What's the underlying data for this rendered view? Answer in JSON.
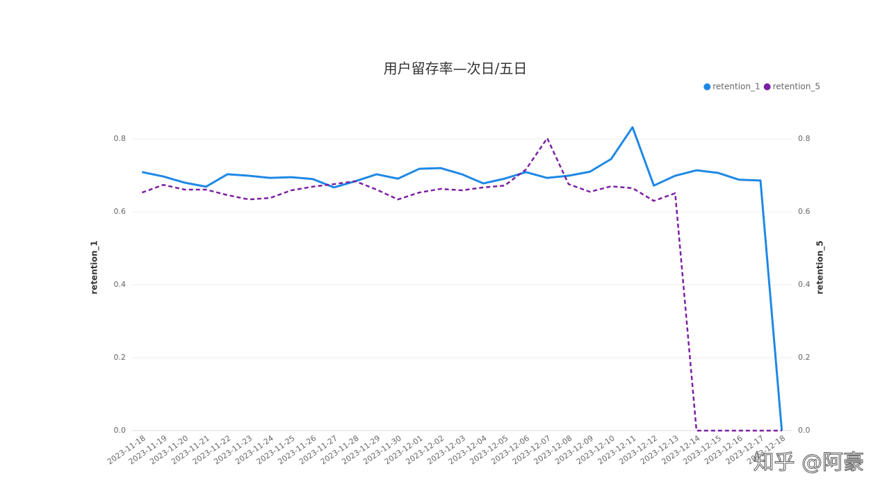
{
  "chart_data": {
    "type": "line",
    "title": "用户留存率—次日/五日",
    "categories": [
      "2023-11-18",
      "2023-11-19",
      "2023-11-20",
      "2023-11-21",
      "2023-11-22",
      "2023-11-23",
      "2023-11-24",
      "2023-11-25",
      "2023-11-26",
      "2023-11-27",
      "2023-11-28",
      "2023-11-29",
      "2023-11-30",
      "2023-12-01",
      "2023-12-02",
      "2023-12-03",
      "2023-12-04",
      "2023-12-05",
      "2023-12-06",
      "2023-12-07",
      "2023-12-08",
      "2023-12-09",
      "2023-12-10",
      "2023-12-11",
      "2023-12-12",
      "2023-12-13",
      "2023-12-14",
      "2023-12-15",
      "2023-12-16",
      "2023-12-17",
      "2023-12-18"
    ],
    "series": [
      {
        "name": "retention_1",
        "color": "#1e88e5",
        "dashed": false,
        "axis": "y",
        "values": [
          0.709,
          0.697,
          0.68,
          0.669,
          0.703,
          0.699,
          0.693,
          0.695,
          0.69,
          0.667,
          0.684,
          0.703,
          0.691,
          0.718,
          0.72,
          0.703,
          0.678,
          0.691,
          0.709,
          0.693,
          0.699,
          0.71,
          0.745,
          0.832,
          0.672,
          0.699,
          0.714,
          0.707,
          0.688,
          0.686,
          0
        ]
      },
      {
        "name": "retention_5",
        "color": "#7b1fa2",
        "dashed": true,
        "axis": "y2",
        "values": [
          0.653,
          0.674,
          0.661,
          0.661,
          0.646,
          0.634,
          0.638,
          0.659,
          0.669,
          0.676,
          0.684,
          0.661,
          0.634,
          0.653,
          0.663,
          0.659,
          0.667,
          0.672,
          0.716,
          0.802,
          0.676,
          0.655,
          0.67,
          0.665,
          0.63,
          0.651,
          0,
          0,
          0,
          0,
          0
        ]
      }
    ],
    "y_label": "retention_1",
    "y2_label": "retention_5",
    "ylim": [
      0,
      0.8
    ],
    "yticks": [
      {
        "value": 0,
        "label": "0.0"
      },
      {
        "value": 0.2,
        "label": "0.2"
      },
      {
        "value": 0.4,
        "label": "0.4"
      },
      {
        "value": 0.6,
        "label": "0.6"
      },
      {
        "value": 0.8,
        "label": "0.8"
      }
    ],
    "y2lim": [
      0,
      0.8
    ],
    "y2ticks": [
      {
        "value": 0,
        "label": "0.0"
      },
      {
        "value": 0.2,
        "label": "0.2"
      },
      {
        "value": 0.4,
        "label": "0.4"
      },
      {
        "value": 0.6,
        "label": "0.6"
      },
      {
        "value": 0.8,
        "label": "0.8"
      }
    ],
    "grid": true,
    "legend": "top-right",
    "watermark": "知乎 @阿豪"
  }
}
